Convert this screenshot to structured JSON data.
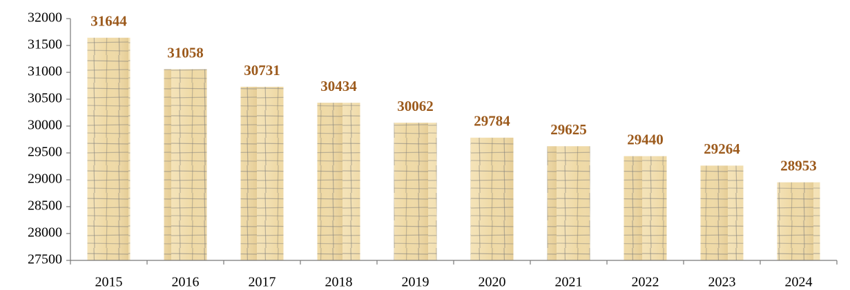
{
  "chart_data": {
    "type": "bar",
    "categories": [
      "2015",
      "2016",
      "2017",
      "2018",
      "2019",
      "2020",
      "2021",
      "2022",
      "2023",
      "2024"
    ],
    "values": [
      31644,
      31058,
      30731,
      30434,
      30062,
      29784,
      29625,
      29440,
      29264,
      28953
    ],
    "color": "#efd9a4",
    "label_color": "#9c5a1c",
    "ylim": [
      27500,
      32000
    ],
    "yticks": [
      27500,
      28000,
      28500,
      29000,
      29500,
      30000,
      30500,
      31000,
      31500,
      32000
    ],
    "grid": false
  }
}
